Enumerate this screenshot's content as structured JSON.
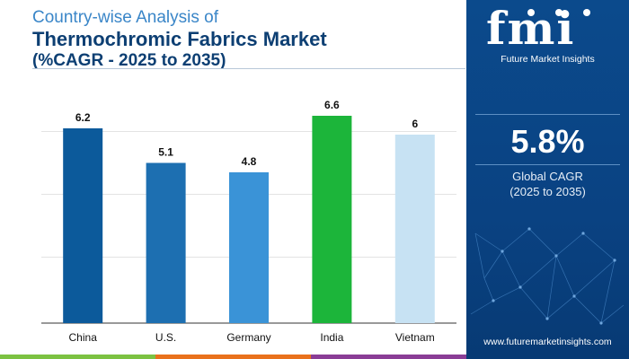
{
  "header": {
    "line1": "Country-wise Analysis of",
    "line2": "Thermochromic Fabrics Market",
    "line3": "(%CAGR - 2025 to 2035)"
  },
  "panel": {
    "logo": "fmi",
    "logo_sub": "Future Market Insights",
    "value": "5.8%",
    "label_line1": "Global CAGR",
    "label_line2": "(2025 to 2035)",
    "website": "www.futuremarketinsights.com"
  },
  "colors": {
    "bottom_bar": [
      "#7cc242",
      "#e9711c",
      "#8a3d96"
    ]
  },
  "chart_data": {
    "type": "bar",
    "categories": [
      "China",
      "U.S.",
      "Germany",
      "India",
      "Vietnam"
    ],
    "values": [
      6.2,
      5.1,
      4.8,
      6.6,
      6
    ],
    "value_labels": [
      "6.2",
      "5.1",
      "4.8",
      "6.6",
      "6"
    ],
    "colors": [
      "#0c5a9b",
      "#1d6fb1",
      "#3a93d7",
      "#1cb53a",
      "#c7e2f3"
    ],
    "ylim": [
      0,
      7
    ],
    "grid": true,
    "title": "",
    "xlabel": "",
    "ylabel": ""
  }
}
